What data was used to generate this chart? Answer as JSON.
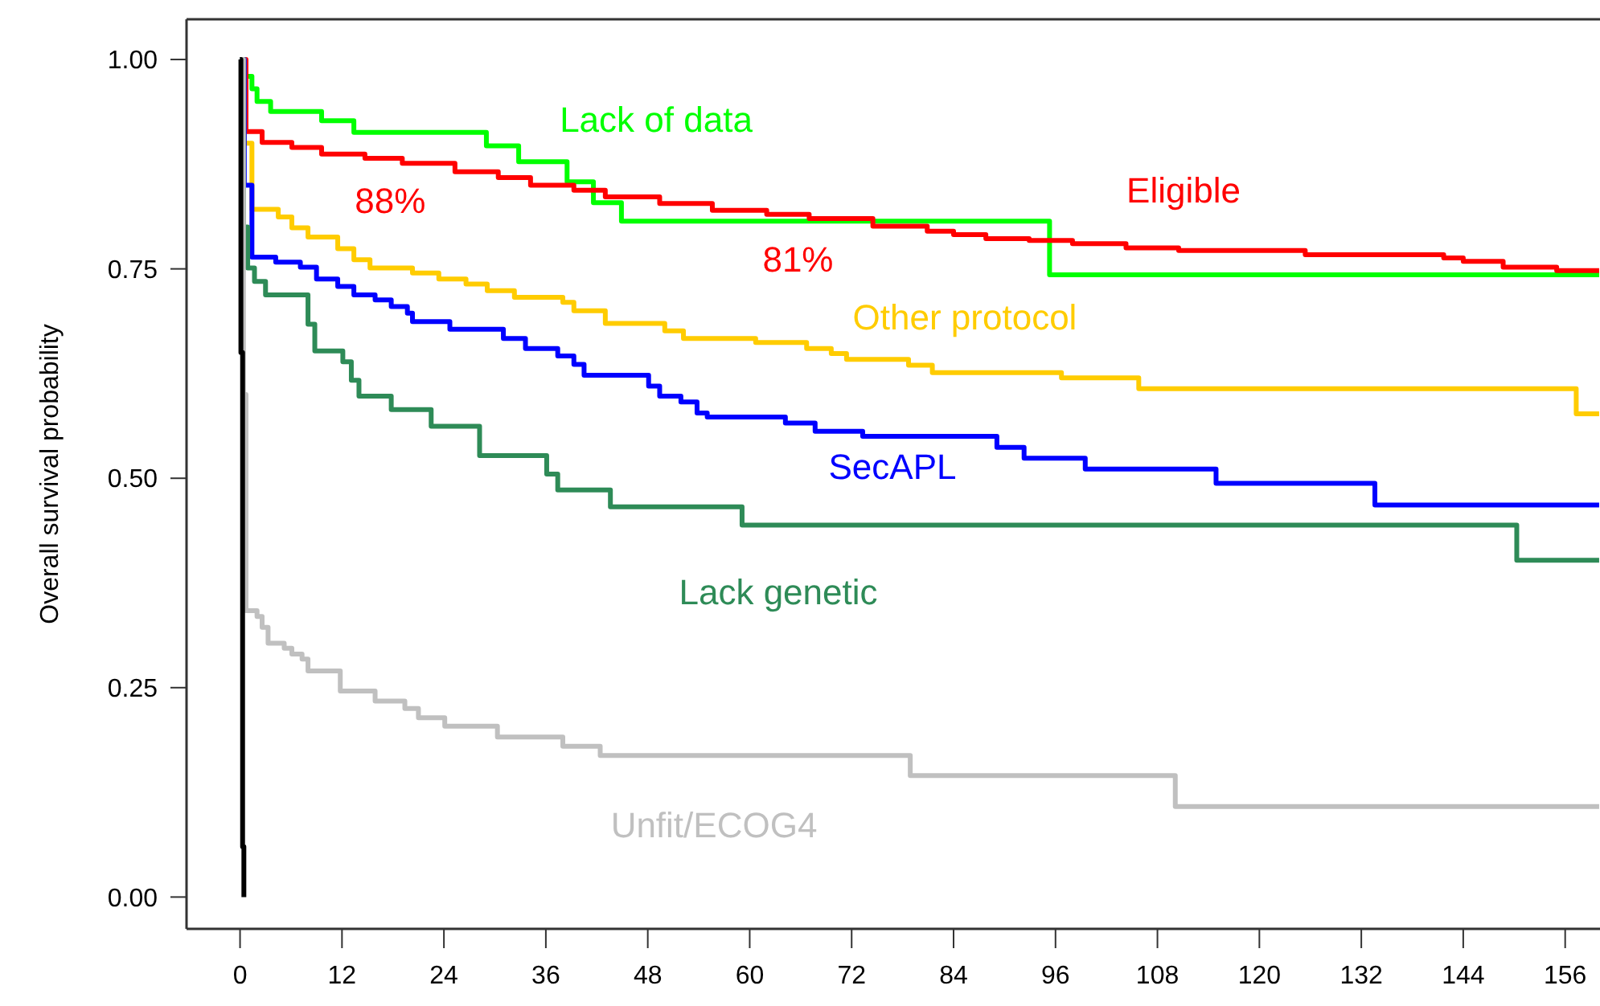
{
  "chart_data": {
    "type": "step",
    "ylabel": "Overall survival probability",
    "xlim": [
      -6.3,
      160.1
    ],
    "ylim": [
      -0.038,
      1.048
    ],
    "xticks": [
      0,
      12,
      24,
      36,
      48,
      60,
      72,
      84,
      96,
      108,
      120,
      132,
      144,
      156
    ],
    "yticks": [
      {
        "value": 0,
        "label": "0.00"
      },
      {
        "value": 0.25,
        "label": "0.25"
      },
      {
        "value": 0.5,
        "label": "0.50"
      },
      {
        "value": 0.75,
        "label": "0.75"
      },
      {
        "value": 1,
        "label": "1.00"
      }
    ],
    "grid": false,
    "line_style": "solid",
    "marker": "none",
    "annotations": [
      {
        "text": "88%",
        "x": 12,
        "y": 0.88
      },
      {
        "text": "81%",
        "x": 60,
        "y": 0.81
      }
    ],
    "series": [
      {
        "name": "Lack of data",
        "color": "#00ff00",
        "x": [
          0,
          0.2,
          1.4,
          2.0,
          3.6,
          9.6,
          13.4,
          29,
          32.8,
          38.5,
          41.6,
          44.9,
          95.3,
          160
        ],
        "values": [
          1,
          0.98,
          0.965,
          0.95,
          0.938,
          0.927,
          0.913,
          0.897,
          0.878,
          0.854,
          0.829,
          0.807,
          0.743,
          0.743
        ]
      },
      {
        "name": "Eligible",
        "color": "#ff0000",
        "x": [
          0,
          0.7,
          2.6,
          6.1,
          9.6,
          14.7,
          19.1,
          25.3,
          30.4,
          34.2,
          39.3,
          43,
          49.4,
          55.6,
          62,
          67,
          74.5,
          80.9,
          84,
          87.8,
          92.9,
          98,
          104.3,
          110.5,
          125.4,
          141.7,
          144,
          148.7,
          155,
          160
        ],
        "values": [
          1,
          0.914,
          0.901,
          0.895,
          0.887,
          0.882,
          0.876,
          0.866,
          0.859,
          0.85,
          0.844,
          0.836,
          0.828,
          0.82,
          0.815,
          0.81,
          0.801,
          0.795,
          0.791,
          0.786,
          0.784,
          0.78,
          0.775,
          0.772,
          0.767,
          0.763,
          0.759,
          0.752,
          0.748,
          0.748
        ]
      },
      {
        "name": "Other protocol",
        "color": "#ffcc00",
        "x": [
          0,
          0.5,
          1.4,
          4.5,
          6.1,
          8,
          11.5,
          13.4,
          15.3,
          20.3,
          23.4,
          26.6,
          29.1,
          32.3,
          38,
          39.3,
          43,
          50,
          52.2,
          60.7,
          66.7,
          69.6,
          71.4,
          78.7,
          81.5,
          96.7,
          105.8,
          157.3,
          160
        ],
        "values": [
          1,
          0.9,
          0.821,
          0.812,
          0.799,
          0.788,
          0.774,
          0.761,
          0.751,
          0.745,
          0.738,
          0.732,
          0.724,
          0.716,
          0.71,
          0.7,
          0.685,
          0.676,
          0.667,
          0.662,
          0.655,
          0.649,
          0.642,
          0.635,
          0.626,
          0.62,
          0.607,
          0.577,
          0.577
        ]
      },
      {
        "name": "SecAPL",
        "color": "#0000ff",
        "x": [
          0,
          0.5,
          1.4,
          4.2,
          7.1,
          9,
          11.5,
          13.4,
          15.9,
          17.8,
          19.7,
          20.3,
          24.7,
          31,
          33.6,
          37.4,
          39.3,
          40.5,
          48.1,
          49.4,
          51.9,
          53.8,
          55,
          64.2,
          67.7,
          73.3,
          89.1,
          92.3,
          99.5,
          114.9,
          133.6,
          160
        ],
        "values": [
          1,
          0.85,
          0.764,
          0.758,
          0.752,
          0.738,
          0.729,
          0.719,
          0.713,
          0.705,
          0.697,
          0.687,
          0.678,
          0.667,
          0.655,
          0.646,
          0.636,
          0.623,
          0.61,
          0.598,
          0.591,
          0.578,
          0.573,
          0.566,
          0.556,
          0.55,
          0.537,
          0.524,
          0.511,
          0.494,
          0.468,
          0.468
        ]
      },
      {
        "name": "Lack genetic",
        "color": "#2e8b57",
        "x": [
          0,
          0.4,
          0.9,
          1.7,
          3,
          8,
          8.8,
          12.1,
          13.1,
          14,
          17.8,
          22.5,
          28.2,
          36.1,
          37.4,
          43.6,
          59.1,
          150.3,
          160
        ],
        "values": [
          1,
          0.8,
          0.751,
          0.735,
          0.719,
          0.684,
          0.652,
          0.639,
          0.617,
          0.598,
          0.582,
          0.562,
          0.527,
          0.505,
          0.486,
          0.466,
          0.444,
          0.402,
          0.402
        ]
      },
      {
        "name": "Unfit/ECOG4",
        "color": "#c0c0c0",
        "x": [
          0,
          0.4,
          0.7,
          2,
          2.6,
          3.3,
          5.2,
          6.1,
          7.3,
          8,
          11.8,
          15.9,
          19.4,
          21,
          24.1,
          30.3,
          38,
          42.4,
          78.9,
          110.1,
          160
        ],
        "values": [
          1,
          0.6,
          0.342,
          0.335,
          0.322,
          0.303,
          0.297,
          0.29,
          0.284,
          0.27,
          0.246,
          0.234,
          0.225,
          0.214,
          0.204,
          0.191,
          0.18,
          0.169,
          0.145,
          0.108,
          0.108
        ]
      },
      {
        "color": "#000000",
        "x": [
          0,
          0.1,
          0.3,
          0.45
        ],
        "values": [
          1,
          0.65,
          0.06,
          0
        ]
      }
    ]
  }
}
